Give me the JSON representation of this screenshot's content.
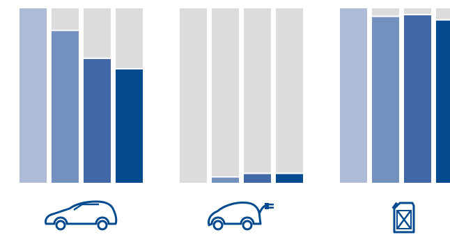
{
  "chart_data": {
    "type": "bar",
    "stacked_to_100": true,
    "groups": [
      {
        "name": "",
        "icon": "car-icon",
        "values": [
          100,
          87,
          71,
          65
        ]
      },
      {
        "name": "",
        "icon": "ev-plug-car-icon",
        "values": [
          0,
          3,
          5,
          5
        ]
      },
      {
        "name": "",
        "icon": "fuel-can-icon",
        "values": [
          100,
          95,
          96,
          93
        ]
      }
    ],
    "ylim": [
      0,
      100
    ],
    "grid": false,
    "legend": "none",
    "colors": {
      "track": "#dcdcdc",
      "series": [
        "#aebbd6",
        "#7390be",
        "#4168a4",
        "#034a8f"
      ]
    }
  }
}
